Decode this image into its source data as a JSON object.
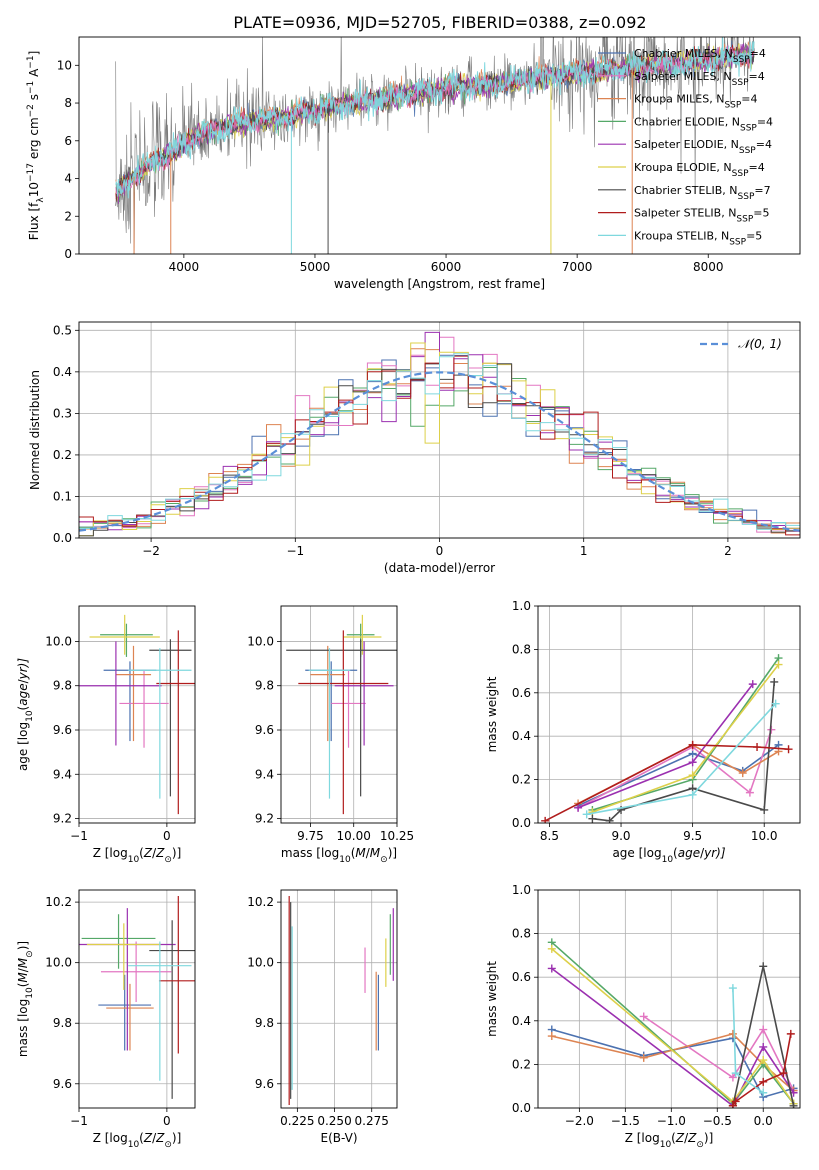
{
  "figure": {
    "title": "PLATE=0936, MJD=52705, FIBERID=0388, z=0.092"
  },
  "legend_labels": [
    {
      "name": "Chabrier MILES",
      "sub": "SSP",
      "n": "=4",
      "color": "#4c72b0"
    },
    {
      "name": "Salpeter MILES",
      "sub": "SSP",
      "n": "=4",
      "color": "#e377c2"
    },
    {
      "name": "Kroupa MILES",
      "sub": "SSP",
      "n": "=4",
      "color": "#dd8452"
    },
    {
      "name": "Chabrier ELODIE",
      "sub": "SSP",
      "n": "=4",
      "color": "#55a868"
    },
    {
      "name": "Salpeter ELODIE",
      "sub": "SSP",
      "n": "=4",
      "color": "#9b30b0"
    },
    {
      "name": "Kroupa ELODIE",
      "sub": "SSP",
      "n": "=4",
      "color": "#ddd04a"
    },
    {
      "name": "Chabrier STELIB",
      "sub": "SSP",
      "n": "=7",
      "color": "#4a4a4a"
    },
    {
      "name": "Salpeter STELIB",
      "sub": "SSP",
      "n": "=5",
      "color": "#b01c1c"
    },
    {
      "name": "Kroupa STELIB",
      "sub": "SSP",
      "n": "=5",
      "color": "#7fd8de"
    }
  ],
  "chart_data": [
    {
      "id": "spectrum",
      "type": "line",
      "xlabel": "wavelength [Angstrom, rest frame]",
      "ylabel_main": "Flux [f",
      "ylabel_sub": "λ",
      "ylabel_mid": "10",
      "ylabel_sup": "−17",
      "ylabel_rest": " erg cm",
      "ylabel_sup2": "−2",
      "ylabel_rest2": " s",
      "ylabel_sup3": "−1",
      "ylabel_rest3": " A",
      "ylabel_sup4": "−1",
      "ylabel_end": "]",
      "xlim": [
        3200,
        8700
      ],
      "ylim": [
        0,
        11.5
      ],
      "xticks": [
        4000,
        5000,
        6000,
        7000,
        8000
      ],
      "yticks": [
        0,
        2,
        4,
        6,
        8,
        10
      ],
      "grid": false,
      "legend": "right",
      "spectrum_nodes": [
        [
          3480,
          3.2
        ],
        [
          3600,
          4.0
        ],
        [
          3800,
          5.0
        ],
        [
          3950,
          5.5
        ],
        [
          4100,
          6.3
        ],
        [
          4400,
          6.9
        ],
        [
          4800,
          7.3
        ],
        [
          5200,
          7.9
        ],
        [
          5600,
          8.3
        ],
        [
          6000,
          8.8
        ],
        [
          6400,
          9.0
        ],
        [
          6800,
          9.4
        ],
        [
          7200,
          9.7
        ],
        [
          7600,
          10.0
        ],
        [
          8000,
          10.3
        ],
        [
          8350,
          10.6
        ]
      ]
    },
    {
      "id": "residuals",
      "type": "histogram",
      "xlabel": "(data-model)/error",
      "ylabel": "Normed distribution",
      "xlim": [
        -2.5,
        2.5
      ],
      "ylim": [
        0,
        0.52
      ],
      "xticks": [
        -2,
        -1,
        0,
        1,
        2
      ],
      "xtick_labels": [
        "−2",
        "−1",
        "0",
        "1",
        "2"
      ],
      "yticks": [
        0.0,
        0.1,
        0.2,
        0.3,
        0.4,
        0.5
      ],
      "ytick_labels": [
        "0.0",
        "0.1",
        "0.2",
        "0.3",
        "0.4",
        "0.5"
      ],
      "grid": true,
      "legend": "top-right",
      "gaussian_label": "𝒩(0, 1)",
      "gaussian_color": "#5a8fd8",
      "bin_edges": [
        -2.5,
        2.5
      ],
      "bin_width": 0.1
    },
    {
      "id": "age-Z",
      "type": "errorbar",
      "xlabel": "Z [log",
      "xlabel_sub": "10",
      "xlabel_rest": "(Z/Z",
      "xlabel_sub2": "⊙",
      "xlabel_end": ")]",
      "ylabel": "age  [log",
      "ylabel_sub": "10",
      "ylabel_rest": "(age/yr)]",
      "xlim": [
        -1.0,
        0.32
      ],
      "ylim": [
        9.18,
        10.16
      ],
      "xticks": [
        -1,
        0
      ],
      "xtick_labels": [
        "−1",
        "0"
      ],
      "yticks": [
        9.2,
        9.4,
        9.6,
        9.8,
        10.0
      ],
      "ytick_labels": [
        "9.2",
        "9.4",
        "9.6",
        "9.8",
        "10.0"
      ],
      "grid": true,
      "points": [
        {
          "series": 0,
          "x": -0.42,
          "xerr": 0.3,
          "y": 9.87,
          "yerr": [
            0.32,
            0.04
          ]
        },
        {
          "series": 1,
          "x": -0.26,
          "xerr": 0.28,
          "y": 9.72,
          "yerr": [
            0.2,
            0.15
          ]
        },
        {
          "series": 2,
          "x": -0.38,
          "xerr": 0.2,
          "y": 9.85,
          "yerr": [
            0.3,
            0.13
          ]
        },
        {
          "series": 3,
          "x": -0.46,
          "xerr": 0.3,
          "y": 10.03,
          "yerr": [
            0.1,
            0.05
          ]
        },
        {
          "series": 4,
          "x": -0.58,
          "xerr": 0.52,
          "y": 9.8,
          "yerr": [
            0.27,
            0.2
          ]
        },
        {
          "series": 5,
          "x": -0.48,
          "xerr": 0.4,
          "y": 10.02,
          "yerr": [
            0.08,
            0.1
          ]
        },
        {
          "series": 6,
          "x": 0.04,
          "xerr": 0.24,
          "y": 9.96,
          "yerr": [
            0.66,
            0.05
          ]
        },
        {
          "series": 7,
          "x": 0.13,
          "xerr": 0.25,
          "y": 9.81,
          "yerr": [
            0.59,
            0.24
          ]
        },
        {
          "series": 8,
          "x": -0.08,
          "xerr": 0.36,
          "y": 9.87,
          "yerr": [
            0.58,
            0.1
          ]
        }
      ]
    },
    {
      "id": "age-mass",
      "type": "errorbar",
      "xlabel": "mass [log",
      "xlabel_sub": "10",
      "xlabel_rest": "(M/M",
      "xlabel_sub2": "⊙",
      "xlabel_end": ")]",
      "xlim": [
        9.58,
        10.25
      ],
      "ylim": [
        9.18,
        10.16
      ],
      "xticks": [
        9.75,
        10.0,
        10.25
      ],
      "xtick_labels": [
        "9.75",
        "10.00",
        "10.25"
      ],
      "yticks": [
        9.2,
        9.4,
        9.6,
        9.8,
        10.0
      ],
      "ytick_labels": [
        "9.2",
        "9.4",
        "9.6",
        "9.8",
        "10.0"
      ],
      "grid": true,
      "points": [
        {
          "series": 0,
          "x": 9.87,
          "xerr": 0.15,
          "y": 9.87,
          "yerr": [
            0.32,
            0.04
          ]
        },
        {
          "series": 1,
          "x": 9.97,
          "xerr": 0.1,
          "y": 9.72,
          "yerr": [
            0.2,
            0.15
          ]
        },
        {
          "series": 2,
          "x": 9.85,
          "xerr": 0.1,
          "y": 9.85,
          "yerr": [
            0.3,
            0.13
          ]
        },
        {
          "series": 3,
          "x": 10.04,
          "xerr": 0.08,
          "y": 10.03,
          "yerr": [
            0.1,
            0.05
          ]
        },
        {
          "series": 4,
          "x": 10.06,
          "xerr": 0.17,
          "y": 9.8,
          "yerr": [
            0.27,
            0.2
          ]
        },
        {
          "series": 5,
          "x": 10.05,
          "xerr": 0.11,
          "y": 10.02,
          "yerr": [
            0.08,
            0.1
          ]
        },
        {
          "series": 6,
          "x": 10.04,
          "xerr": 0.43,
          "y": 9.96,
          "yerr": [
            0.66,
            0.05
          ]
        },
        {
          "series": 7,
          "x": 9.94,
          "xerr": 0.26,
          "y": 9.81,
          "yerr": [
            0.59,
            0.24
          ]
        },
        {
          "series": 8,
          "x": 9.86,
          "xerr": 0.12,
          "y": 9.87,
          "yerr": [
            0.58,
            0.1
          ]
        }
      ]
    },
    {
      "id": "massweight-age",
      "type": "line",
      "xlabel": "age  [log",
      "xlabel_sub": "10",
      "xlabel_rest": "(age/yr)]",
      "ylabel": "mass weight",
      "xlim": [
        8.42,
        10.25
      ],
      "ylim": [
        0,
        1
      ],
      "xticks": [
        8.5,
        9.0,
        9.5,
        10.0
      ],
      "xtick_labels": [
        "8.5",
        "9.0",
        "9.5",
        "10.0"
      ],
      "yticks": [
        0.0,
        0.2,
        0.4,
        0.6,
        0.8,
        1.0
      ],
      "ytick_labels": [
        "0.0",
        "0.2",
        "0.4",
        "0.6",
        "0.8",
        "1.0"
      ],
      "grid": true,
      "series": [
        {
          "x": [
            8.7,
            9.5,
            9.85,
            10.1
          ],
          "y": [
            0.08,
            0.32,
            0.24,
            0.36
          ]
        },
        {
          "x": [
            8.7,
            9.5,
            9.9,
            10.05
          ],
          "y": [
            0.07,
            0.35,
            0.14,
            0.43
          ]
        },
        {
          "x": [
            8.7,
            9.5,
            9.85,
            10.1
          ],
          "y": [
            0.09,
            0.36,
            0.23,
            0.33
          ]
        },
        {
          "x": [
            8.8,
            9.5,
            10.1
          ],
          "y": [
            0.06,
            0.2,
            0.76
          ]
        },
        {
          "x": [
            8.7,
            9.5,
            9.92
          ],
          "y": [
            0.07,
            0.28,
            0.64
          ]
        },
        {
          "x": [
            8.8,
            9.5,
            10.1
          ],
          "y": [
            0.05,
            0.22,
            0.73
          ]
        },
        {
          "x": [
            8.8,
            8.92,
            9.0,
            9.5,
            10.0,
            10.07
          ],
          "y": [
            0.02,
            0.01,
            0.06,
            0.16,
            0.06,
            0.65
          ]
        },
        {
          "x": [
            8.47,
            9.5,
            9.95,
            10.17
          ],
          "y": [
            0.01,
            0.36,
            0.35,
            0.34
          ]
        },
        {
          "x": [
            8.76,
            9.5,
            10.08
          ],
          "y": [
            0.04,
            0.13,
            0.55
          ]
        }
      ]
    },
    {
      "id": "mass-Z",
      "type": "errorbar",
      "xlabel": "Z [log",
      "xlabel_sub": "10",
      "xlabel_rest": "(Z/Z",
      "xlabel_sub2": "⊙",
      "xlabel_end": ")]",
      "ylabel": "mass [log",
      "ylabel_sub": "10",
      "ylabel_rest": "(M/M",
      "ylabel_sub2": "⊙",
      "ylabel_end": ")]",
      "xlim": [
        -1.0,
        0.32
      ],
      "ylim": [
        9.52,
        10.24
      ],
      "xticks": [
        -1,
        0
      ],
      "xtick_labels": [
        "−1",
        "0"
      ],
      "yticks": [
        9.6,
        9.8,
        10.0,
        10.2
      ],
      "ytick_labels": [
        "9.6",
        "9.8",
        "10.0",
        "10.2"
      ],
      "grid": true,
      "points": [
        {
          "series": 0,
          "x": -0.48,
          "xerr": 0.3,
          "y": 9.86,
          "yerr": [
            0.15,
            0.1
          ]
        },
        {
          "series": 1,
          "x": -0.35,
          "xerr": 0.4,
          "y": 9.97,
          "yerr": [
            0.1,
            0.1
          ]
        },
        {
          "series": 2,
          "x": -0.42,
          "xerr": 0.27,
          "y": 9.85,
          "yerr": [
            0.14,
            0.08
          ]
        },
        {
          "series": 3,
          "x": -0.55,
          "xerr": 0.42,
          "y": 10.08,
          "yerr": [
            0.1,
            0.08
          ]
        },
        {
          "series": 4,
          "x": -0.45,
          "xerr": 0.55,
          "y": 10.06,
          "yerr": [
            0.35,
            0.12
          ]
        },
        {
          "series": 5,
          "x": -0.49,
          "xerr": 0.42,
          "y": 10.06,
          "yerr": [
            0.15,
            0.07
          ]
        },
        {
          "series": 6,
          "x": 0.06,
          "xerr": 0.26,
          "y": 10.04,
          "yerr": [
            0.49,
            0.1
          ]
        },
        {
          "series": 7,
          "x": 0.13,
          "xerr": 0.22,
          "y": 9.94,
          "yerr": [
            0.24,
            0.28
          ]
        },
        {
          "series": 8,
          "x": -0.08,
          "xerr": 0.36,
          "y": 9.99,
          "yerr": [
            0.38,
            0.08
          ]
        }
      ]
    },
    {
      "id": "mass-EBV",
      "type": "errorbar",
      "xlabel": "E(B-V)",
      "xlim": [
        0.214,
        0.292
      ],
      "ylim": [
        9.52,
        10.24
      ],
      "xticks": [
        0.225,
        0.25,
        0.275
      ],
      "xtick_labels": [
        "0.225",
        "0.250",
        "0.275"
      ],
      "yticks": [
        9.6,
        9.8,
        10.0,
        10.2
      ],
      "ytick_labels": [
        "9.6",
        "9.8",
        "10.0",
        "10.2"
      ],
      "grid": true,
      "points": [
        {
          "series": 0,
          "x": 0.2795,
          "xerr": 0,
          "y": 9.86,
          "yerr": [
            0.15,
            0.1
          ]
        },
        {
          "series": 1,
          "x": 0.2705,
          "xerr": 0,
          "y": 9.97,
          "yerr": [
            0.07,
            0.08
          ]
        },
        {
          "series": 2,
          "x": 0.278,
          "xerr": 0,
          "y": 9.85,
          "yerr": [
            0.14,
            0.12
          ]
        },
        {
          "series": 3,
          "x": 0.2875,
          "xerr": 0,
          "y": 10.08,
          "yerr": [
            0.12,
            0.08
          ]
        },
        {
          "series": 4,
          "x": 0.2895,
          "xerr": 0,
          "y": 10.06,
          "yerr": [
            0.12,
            0.12
          ]
        },
        {
          "series": 5,
          "x": 0.2845,
          "xerr": 0,
          "y": 10.0,
          "yerr": [
            0.08,
            0.08
          ]
        },
        {
          "series": 6,
          "x": 0.2205,
          "xerr": 0,
          "y": 9.88,
          "yerr": [
            0.33,
            0.32
          ]
        },
        {
          "series": 7,
          "x": 0.2195,
          "xerr": 0,
          "y": 9.88,
          "yerr": [
            0.35,
            0.34
          ]
        },
        {
          "series": 8,
          "x": 0.2215,
          "xerr": 0,
          "y": 9.86,
          "yerr": [
            0.28,
            0.26
          ]
        }
      ]
    },
    {
      "id": "massweight-Z",
      "type": "line",
      "xlabel": "Z [log",
      "xlabel_sub": "10",
      "xlabel_rest": "(Z/Z",
      "xlabel_sub2": "⊙",
      "xlabel_end": ")]",
      "ylabel": "mass weight",
      "xlim": [
        -2.45,
        0.4
      ],
      "ylim": [
        0,
        1
      ],
      "xticks": [
        -2.0,
        -1.5,
        -1.0,
        -0.5,
        0.0
      ],
      "xtick_labels": [
        "−2.0",
        "−1.5",
        "−1.0",
        "−0.5",
        "0.0"
      ],
      "yticks": [
        0.0,
        0.2,
        0.4,
        0.6,
        0.8,
        1.0
      ],
      "ytick_labels": [
        "0.0",
        "0.2",
        "0.4",
        "0.6",
        "0.8",
        "1.0"
      ],
      "grid": true,
      "series": [
        {
          "x": [
            -2.3,
            -1.3,
            -0.33,
            0.0,
            0.33
          ],
          "y": [
            0.36,
            0.24,
            0.32,
            0.05,
            0.09
          ]
        },
        {
          "x": [
            -1.3,
            -0.33,
            0.0,
            0.33
          ],
          "y": [
            0.42,
            0.14,
            0.36,
            0.08
          ]
        },
        {
          "x": [
            -2.3,
            -1.3,
            -0.33,
            0.0,
            0.33
          ],
          "y": [
            0.33,
            0.23,
            0.34,
            0.2,
            0.08
          ]
        },
        {
          "x": [
            -2.3,
            -0.33,
            0.0,
            0.33
          ],
          "y": [
            0.76,
            0.02,
            0.2,
            0.02
          ]
        },
        {
          "x": [
            -2.3,
            -0.33,
            0.0,
            0.33
          ],
          "y": [
            0.64,
            0.01,
            0.28,
            0.07
          ]
        },
        {
          "x": [
            -2.3,
            -0.33,
            0.0,
            0.33
          ],
          "y": [
            0.73,
            0.03,
            0.22,
            0.02
          ]
        },
        {
          "x": [
            -0.33,
            0.0,
            0.33
          ],
          "y": [
            0.01,
            0.65,
            0.01
          ]
        },
        {
          "x": [
            -0.33,
            -0.3,
            0.0,
            0.22,
            0.3
          ],
          "y": [
            0.01,
            0.03,
            0.12,
            0.16,
            0.34
          ]
        },
        {
          "x": [
            -0.33,
            -0.3,
            0.0
          ],
          "y": [
            0.55,
            0.16,
            0.07
          ]
        }
      ]
    }
  ]
}
